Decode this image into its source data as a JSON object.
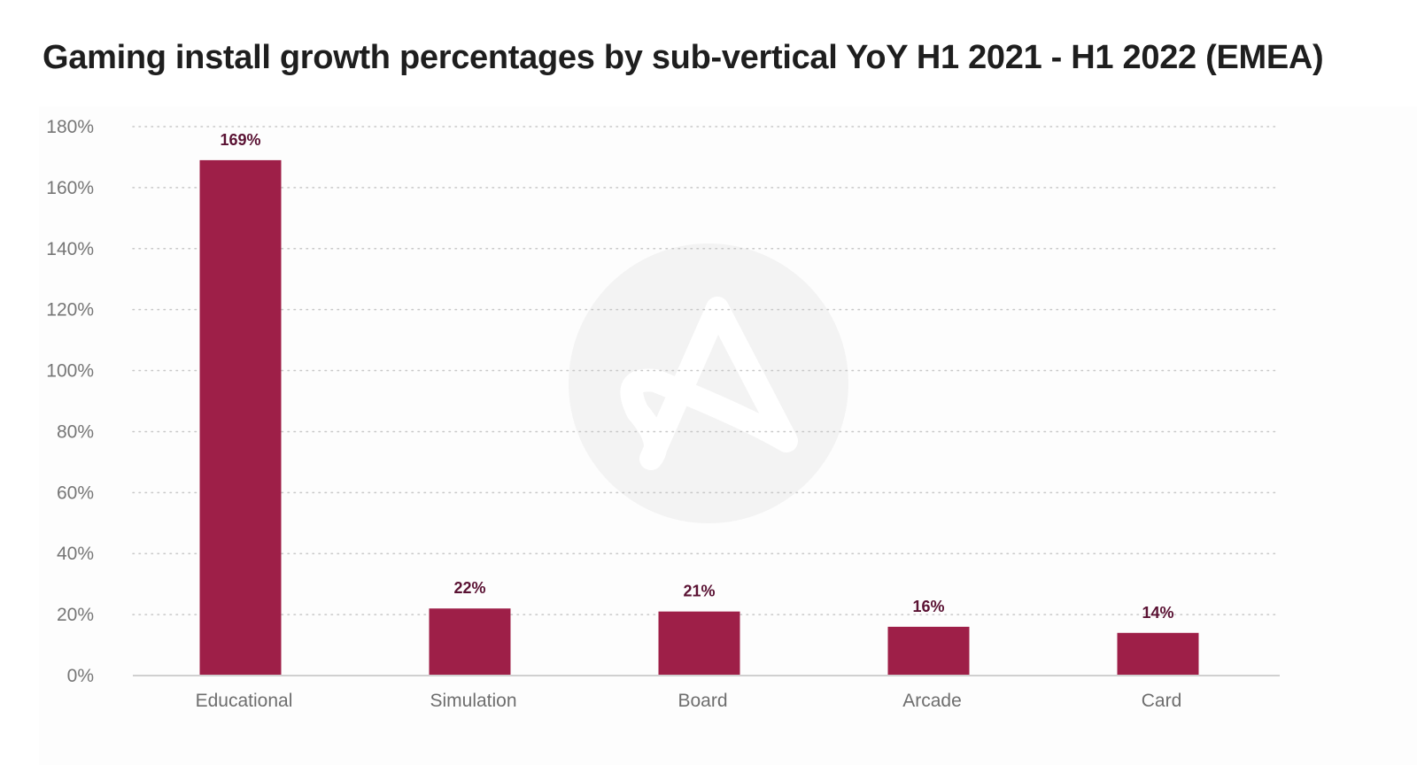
{
  "chart_data": {
    "type": "bar",
    "title": "Gaming install growth percentages by sub-vertical YoY H1 2021 - H1 2022 (EMEA)",
    "xlabel": "",
    "ylabel": "",
    "categories": [
      "Educational",
      "Simulation",
      "Board",
      "Arcade",
      "Card"
    ],
    "values": [
      169,
      22,
      21,
      16,
      14
    ],
    "data_labels": [
      "169%",
      "22%",
      "21%",
      "16%",
      "14%"
    ],
    "ylim": [
      0,
      180
    ],
    "yticks": [
      0,
      20,
      40,
      60,
      80,
      100,
      120,
      140,
      160,
      180
    ],
    "ytick_labels": [
      "0%",
      "20%",
      "40%",
      "60%",
      "80%",
      "100%",
      "120%",
      "140%",
      "160%",
      "180%"
    ],
    "grid": true,
    "grid_style": "dotted",
    "legend": "none",
    "colors": {
      "bar": "#9e1f48",
      "data_label": "#5a1233",
      "grid": "#c8c8c8",
      "axis": "#d0d0d0",
      "watermark": "#f3f3f3"
    },
    "watermark": "brand-logo-icon"
  }
}
